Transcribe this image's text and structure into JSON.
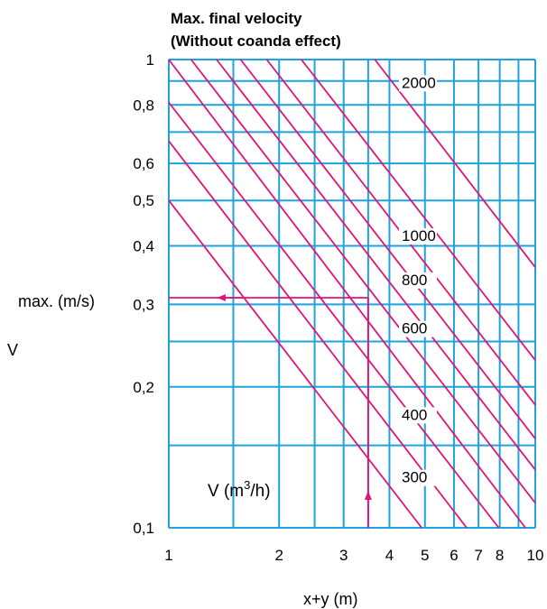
{
  "title_line1": "Max. final velocity",
  "title_line2": "(Without coanda effect)",
  "colors": {
    "grid": "#1ea3dc",
    "curve": "#e0147a",
    "text": "#000000"
  },
  "chart_data": {
    "type": "line",
    "title": "Max. final velocity (Without coanda effect)",
    "x_scale": "log",
    "y_scale": "log",
    "xlim": [
      1,
      10
    ],
    "ylim": [
      0.1,
      1
    ],
    "xlabel": "x+y (m)",
    "ylabel_main": "max. (m/s)",
    "ylabel_symbol": "V",
    "x_ticks": [
      {
        "value": 1,
        "label": "1"
      },
      {
        "value": 2,
        "label": "2"
      },
      {
        "value": 3,
        "label": "3"
      },
      {
        "value": 4,
        "label": "4"
      },
      {
        "value": 5,
        "label": "5"
      },
      {
        "value": 6,
        "label": "6"
      },
      {
        "value": 7,
        "label": "7"
      },
      {
        "value": 8,
        "label": "8"
      },
      {
        "value": 10,
        "label": "10"
      }
    ],
    "x_grid": [
      1,
      1.5,
      2,
      2.5,
      3,
      3.5,
      4,
      5,
      6,
      7,
      8,
      9,
      10
    ],
    "y_ticks": [
      {
        "value": 1,
        "label": "1"
      },
      {
        "value": 0.8,
        "label": "0,8"
      },
      {
        "value": 0.6,
        "label": "0,6"
      },
      {
        "value": 0.5,
        "label": "0,5"
      },
      {
        "value": 0.4,
        "label": "0,4"
      },
      {
        "value": 0.3,
        "label": "0,3"
      },
      {
        "value": 0.2,
        "label": "0,2"
      },
      {
        "value": 0.1,
        "label": "0,1"
      }
    ],
    "y_grid": [
      0.1,
      0.15,
      0.2,
      0.25,
      0.3,
      0.4,
      0.5,
      0.6,
      0.7,
      0.8,
      0.9,
      1
    ],
    "series_label": "V (m3/h)",
    "flow_labels": [
      {
        "text": "2000",
        "x": 4.32,
        "y": 0.87
      },
      {
        "text": "1000",
        "x": 4.32,
        "y": 0.41
      },
      {
        "text": "800",
        "x": 4.32,
        "y": 0.33
      },
      {
        "text": "600",
        "x": 4.32,
        "y": 0.26
      },
      {
        "text": "400",
        "x": 4.32,
        "y": 0.17
      },
      {
        "text": "300",
        "x": 4.32,
        "y": 0.125
      }
    ],
    "lines": [
      {
        "points": [
          [
            1.0,
            0.5
          ],
          [
            4.9,
            0.1
          ]
        ]
      },
      {
        "points": [
          [
            1.0,
            0.67
          ],
          [
            6.5,
            0.1
          ]
        ]
      },
      {
        "points": [
          [
            1.0,
            0.81
          ],
          [
            7.95,
            0.1
          ]
        ]
      },
      {
        "points": [
          [
            1.0,
            1.0
          ],
          [
            9.4,
            0.1
          ]
        ]
      },
      {
        "points": [
          [
            1.15,
            1.0
          ],
          [
            10,
            0.113
          ]
        ]
      },
      {
        "points": [
          [
            1.35,
            1.0
          ],
          [
            10,
            0.133
          ]
        ]
      },
      {
        "points": [
          [
            1.57,
            1.0
          ],
          [
            10,
            0.155
          ]
        ]
      },
      {
        "points": [
          [
            1.85,
            1.0
          ],
          [
            10,
            0.183
          ]
        ]
      },
      {
        "points": [
          [
            2.3,
            1.0
          ],
          [
            10,
            0.228
          ]
        ]
      },
      {
        "points": [
          [
            3.65,
            1.0
          ],
          [
            10,
            0.36
          ]
        ]
      }
    ],
    "example": {
      "x": 3.5,
      "y": 0.31,
      "start_y": 0.1
    }
  }
}
